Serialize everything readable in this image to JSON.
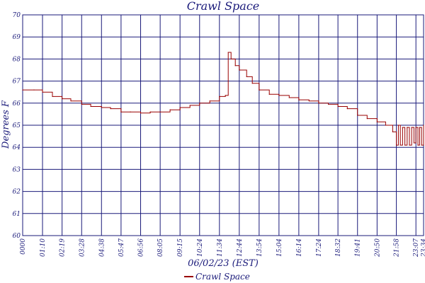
{
  "chart_data": {
    "type": "line",
    "title": "Crawl Space",
    "xlabel": "06/02/23 (EST)",
    "ylabel": "Degrees F",
    "ylim": [
      60,
      70
    ],
    "y_ticks": [
      "60",
      "61",
      "62",
      "63",
      "64",
      "65",
      "66",
      "67",
      "68",
      "69",
      "70"
    ],
    "x_ticks": [
      "0000",
      "01:10",
      "02:19",
      "03:28",
      "04:38",
      "05:47",
      "06:56",
      "08:05",
      "09:15",
      "10:24",
      "11:34",
      "12:44",
      "13:54",
      "15:04",
      "16:14",
      "17:24",
      "18:32",
      "19:41",
      "20:50",
      "21:58",
      "23:07",
      "23:34"
    ],
    "grid": true,
    "legend": "bottom-center",
    "colors": {
      "series": "#990000",
      "grid": "#1a1a7a",
      "text": "#1a1a7a"
    },
    "series": [
      {
        "name": "Crawl Space",
        "points": [
          [
            "00:00",
            66.6
          ],
          [
            "00:40",
            66.6
          ],
          [
            "01:10",
            66.5
          ],
          [
            "01:45",
            66.3
          ],
          [
            "02:19",
            66.2
          ],
          [
            "02:50",
            66.1
          ],
          [
            "03:28",
            65.95
          ],
          [
            "04:00",
            65.85
          ],
          [
            "04:38",
            65.8
          ],
          [
            "05:10",
            65.75
          ],
          [
            "05:47",
            65.6
          ],
          [
            "06:20",
            65.6
          ],
          [
            "06:56",
            65.55
          ],
          [
            "07:30",
            65.6
          ],
          [
            "08:05",
            65.6
          ],
          [
            "08:40",
            65.7
          ],
          [
            "09:15",
            65.8
          ],
          [
            "09:50",
            65.9
          ],
          [
            "10:24",
            66.0
          ],
          [
            "11:00",
            66.1
          ],
          [
            "11:34",
            66.3
          ],
          [
            "11:55",
            66.35
          ],
          [
            "12:05",
            68.3
          ],
          [
            "12:15",
            68.0
          ],
          [
            "12:30",
            67.7
          ],
          [
            "12:44",
            67.5
          ],
          [
            "13:10",
            67.2
          ],
          [
            "13:30",
            66.9
          ],
          [
            "13:54",
            66.6
          ],
          [
            "14:30",
            66.4
          ],
          [
            "15:04",
            66.35
          ],
          [
            "15:40",
            66.25
          ],
          [
            "16:14",
            66.15
          ],
          [
            "16:50",
            66.1
          ],
          [
            "17:24",
            66.0
          ],
          [
            "17:58",
            65.95
          ],
          [
            "18:32",
            65.85
          ],
          [
            "19:05",
            65.75
          ],
          [
            "19:41",
            65.45
          ],
          [
            "20:15",
            65.3
          ],
          [
            "20:50",
            65.15
          ],
          [
            "21:20",
            65.0
          ],
          [
            "21:45",
            64.7
          ],
          [
            "21:58",
            64.1
          ],
          [
            "22:05",
            65.0
          ],
          [
            "22:12",
            64.1
          ],
          [
            "22:20",
            64.9
          ],
          [
            "22:28",
            64.1
          ],
          [
            "22:36",
            64.9
          ],
          [
            "22:44",
            64.1
          ],
          [
            "22:52",
            64.9
          ],
          [
            "23:00",
            64.2
          ],
          [
            "23:07",
            64.9
          ],
          [
            "23:14",
            64.1
          ],
          [
            "23:20",
            64.9
          ],
          [
            "23:27",
            64.1
          ],
          [
            "23:34",
            65.0
          ]
        ]
      }
    ]
  }
}
